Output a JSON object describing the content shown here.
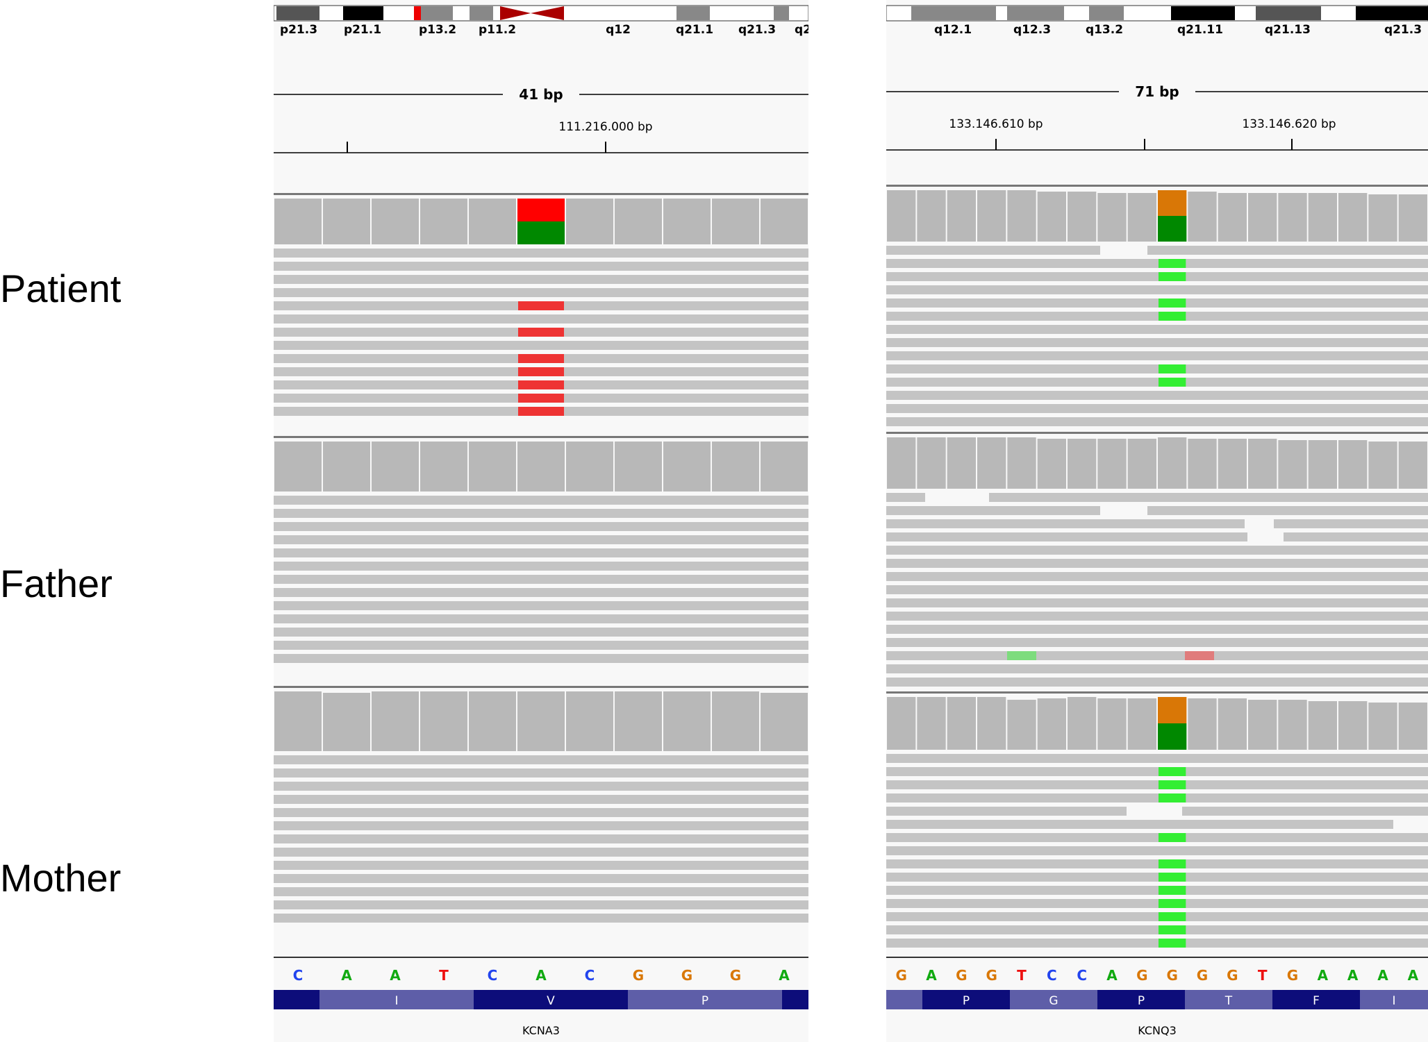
{
  "row_labels": [
    "Patient",
    "Father",
    "Mother"
  ],
  "panels": [
    {
      "id": "left",
      "bands": [
        "p21.3",
        "p21.1",
        "p13.2",
        "p11.2",
        "q12",
        "q21.1",
        "q21.3",
        "q2"
      ],
      "span": "41 bp",
      "position_label": "111.216.000 bp",
      "sequence": [
        "C",
        "A",
        "A",
        "T",
        "C",
        "A",
        "C",
        "G",
        "G",
        "G",
        "A"
      ],
      "amino_acids": [
        "I",
        "V",
        "P"
      ],
      "gene": "KCNA3",
      "variant_column": 5,
      "patient_variant_rows": [
        4,
        6,
        8,
        9,
        10,
        11,
        12
      ],
      "alt_color": "#ee3333",
      "ref_color": "#008800"
    },
    {
      "id": "right",
      "bands": [
        "q12.1",
        "q12.3",
        "q13.2",
        "q21.11",
        "q21.13",
        "q21.3"
      ],
      "span": "71 bp",
      "position_labels": [
        "133.146.610 bp",
        "133.146.620 bp"
      ],
      "sequence": [
        "G",
        "A",
        "G",
        "G",
        "T",
        "C",
        "C",
        "A",
        "G",
        "G",
        "G",
        "G",
        "T",
        "G",
        "A",
        "A",
        "A",
        "A"
      ],
      "amino_acids": [
        "P",
        "G",
        "P",
        "T",
        "F",
        "I"
      ],
      "gene": "KCNQ3",
      "variant_column": 9,
      "patient_variant_rows": [
        1,
        2,
        4,
        5,
        9,
        10
      ],
      "mother_variant_rows": [
        1,
        2,
        3,
        6,
        8,
        9,
        10,
        11,
        12,
        13,
        14
      ],
      "alt_color": "#33ee33",
      "ref_color": "#d97706"
    }
  ],
  "colors": {
    "base_A": "#11aa11",
    "base_C": "#2244ee",
    "base_G": "#d97706",
    "base_T": "#ee1111",
    "read": "#c4c4c4",
    "coverage": "#b8b8b8",
    "aa_dark": "#0d0d7a",
    "aa_light": "#5e5ea8"
  }
}
